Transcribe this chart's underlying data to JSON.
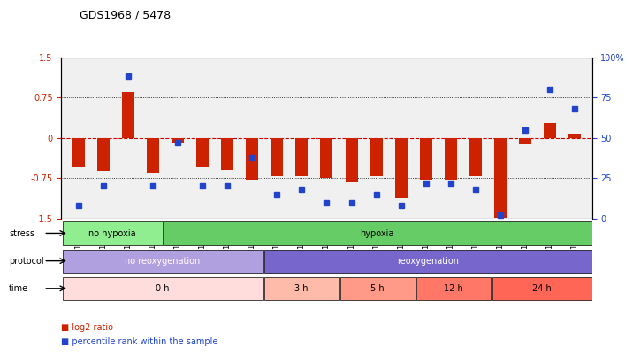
{
  "title": "GDS1968 / 5478",
  "samples": [
    "GSM16836",
    "GSM16837",
    "GSM16838",
    "GSM16839",
    "GSM16784",
    "GSM16814",
    "GSM16815",
    "GSM16816",
    "GSM16817",
    "GSM16818",
    "GSM16819",
    "GSM16821",
    "GSM16824",
    "GSM16826",
    "GSM16828",
    "GSM16830",
    "GSM16831",
    "GSM16832",
    "GSM16833",
    "GSM16834",
    "GSM16835"
  ],
  "log2_ratio": [
    -0.55,
    -0.62,
    0.85,
    -0.65,
    -0.08,
    -0.55,
    -0.6,
    -0.78,
    -0.72,
    -0.72,
    -0.75,
    -0.82,
    -0.72,
    -1.12,
    -0.78,
    -0.78,
    -0.72,
    -1.48,
    -0.12,
    0.28,
    0.08
  ],
  "percentile": [
    8,
    20,
    88,
    20,
    47,
    20,
    20,
    38,
    15,
    18,
    10,
    10,
    15,
    8,
    22,
    22,
    18,
    2,
    55,
    80,
    68
  ],
  "stress_groups": [
    {
      "label": "no hypoxia",
      "start": 0,
      "end": 4,
      "color": "#90ee90"
    },
    {
      "label": "hypoxia",
      "start": 4,
      "end": 21,
      "color": "#66cc66"
    }
  ],
  "protocol_groups": [
    {
      "label": "no reoxygenation",
      "start": 0,
      "end": 8,
      "color": "#b0a0e0"
    },
    {
      "label": "reoxygenation",
      "start": 8,
      "end": 21,
      "color": "#7766cc"
    }
  ],
  "time_groups": [
    {
      "label": "0 h",
      "start": 0,
      "end": 8,
      "color": "#ffdddd"
    },
    {
      "label": "3 h",
      "start": 8,
      "end": 11,
      "color": "#ffbbaa"
    },
    {
      "label": "5 h",
      "start": 11,
      "end": 14,
      "color": "#ff9988"
    },
    {
      "label": "12 h",
      "start": 14,
      "end": 17,
      "color": "#ff7766"
    },
    {
      "label": "24 h",
      "start": 17,
      "end": 21,
      "color": "#ff6655"
    }
  ],
  "ylim_left": [
    -1.5,
    1.5
  ],
  "ylim_right": [
    0,
    100
  ],
  "yticks_left": [
    -1.5,
    -0.75,
    0,
    0.75,
    1.5
  ],
  "yticks_right": [
    0,
    25,
    50,
    75,
    100
  ],
  "ytick_labels_right": [
    "0",
    "25",
    "50",
    "75",
    "100%"
  ],
  "bar_color": "#cc2200",
  "dot_color": "#2244cc",
  "hline_color": "#cc0000",
  "bg_color": "#ffffff",
  "grid_color": "#000000"
}
